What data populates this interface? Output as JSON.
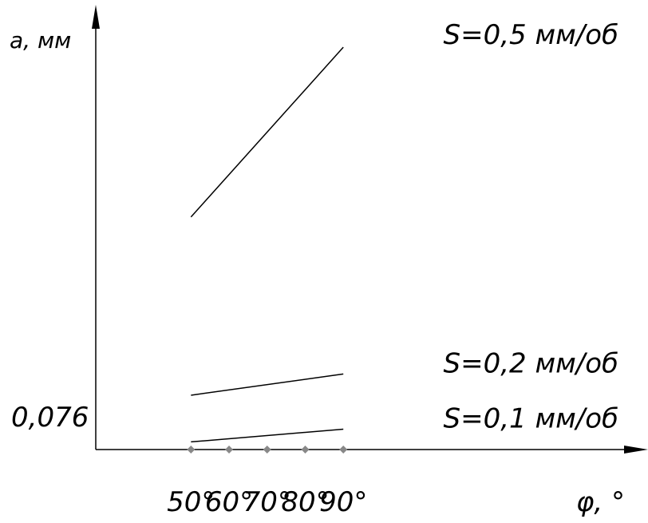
{
  "chart_data": {
    "type": "line",
    "ylabel": "a, мм",
    "xlabel": "φ, °",
    "y_tick_label": "0,076",
    "x": [
      50,
      90
    ],
    "x_tick_labels": [
      "50°",
      "60°",
      "70°",
      "80°",
      "90°"
    ],
    "x_ticks": [
      50,
      60,
      70,
      80,
      90
    ],
    "series": [
      {
        "name": "S=0,5 мм/об",
        "values": [
          0.35,
          0.55
        ]
      },
      {
        "name": "S=0,2 мм/об",
        "values": [
          0.14,
          0.165
        ]
      },
      {
        "name": "S=0,1 мм/об",
        "values": [
          0.085,
          0.1
        ]
      }
    ],
    "ylim": [
      0.076,
      0.6
    ],
    "xlim": [
      25,
      170
    ],
    "grid": false
  },
  "colors": {
    "line": "#000000",
    "tick_marker": "#888888"
  }
}
